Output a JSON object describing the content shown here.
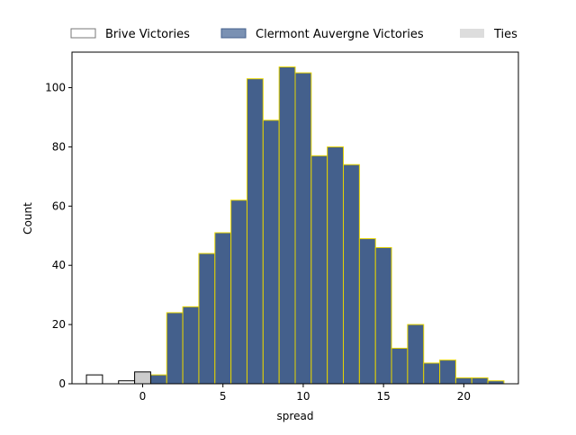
{
  "chart_data": {
    "type": "bar",
    "xlabel": "spread",
    "ylabel": "Count",
    "xlim": [
      -4.4,
      23.4
    ],
    "ylim": [
      0,
      112
    ],
    "xticks": [
      0,
      5,
      10,
      15,
      20
    ],
    "yticks": [
      0,
      20,
      40,
      60,
      80,
      100
    ],
    "bin_width": 1,
    "legend_position": "top (above plot, single row)",
    "grid": false,
    "series": [
      {
        "name": "Brive Victories",
        "style": "outline",
        "fill": "#ffffff",
        "stroke": "#000000",
        "bins": [
          {
            "x0": -3.5,
            "x1": -2.5,
            "count": 3
          },
          {
            "x0": -1.5,
            "x1": -0.5,
            "count": 1
          }
        ]
      },
      {
        "name": "Clermont Auvergne Victories",
        "style": "filled",
        "fill": "#44608c",
        "stroke": "#e5d300",
        "bins": [
          {
            "x0": 0.5,
            "x1": 1.5,
            "count": 3
          },
          {
            "x0": 1.5,
            "x1": 2.5,
            "count": 24
          },
          {
            "x0": 2.5,
            "x1": 3.5,
            "count": 26
          },
          {
            "x0": 3.5,
            "x1": 4.5,
            "count": 44
          },
          {
            "x0": 4.5,
            "x1": 5.5,
            "count": 51
          },
          {
            "x0": 5.5,
            "x1": 6.5,
            "count": 62
          },
          {
            "x0": 6.5,
            "x1": 7.5,
            "count": 103
          },
          {
            "x0": 7.5,
            "x1": 8.5,
            "count": 89
          },
          {
            "x0": 8.5,
            "x1": 9.5,
            "count": 107
          },
          {
            "x0": 9.5,
            "x1": 10.5,
            "count": 105
          },
          {
            "x0": 10.5,
            "x1": 11.5,
            "count": 77
          },
          {
            "x0": 11.5,
            "x1": 12.5,
            "count": 80
          },
          {
            "x0": 12.5,
            "x1": 13.5,
            "count": 74
          },
          {
            "x0": 13.5,
            "x1": 14.5,
            "count": 49
          },
          {
            "x0": 14.5,
            "x1": 15.5,
            "count": 46
          },
          {
            "x0": 15.5,
            "x1": 16.5,
            "count": 12
          },
          {
            "x0": 16.5,
            "x1": 17.5,
            "count": 20
          },
          {
            "x0": 17.5,
            "x1": 18.5,
            "count": 7
          },
          {
            "x0": 18.5,
            "x1": 19.5,
            "count": 8
          },
          {
            "x0": 19.5,
            "x1": 20.5,
            "count": 2
          },
          {
            "x0": 20.5,
            "x1": 21.5,
            "count": 2
          },
          {
            "x0": 21.5,
            "x1": 22.5,
            "count": 1
          }
        ]
      },
      {
        "name": "Ties",
        "style": "filled",
        "fill": "#cccccc",
        "stroke": "#000000",
        "legend_fill": "#dddddd",
        "bins": [
          {
            "x0": -0.5,
            "x1": 0.5,
            "count": 4
          }
        ]
      }
    ]
  }
}
